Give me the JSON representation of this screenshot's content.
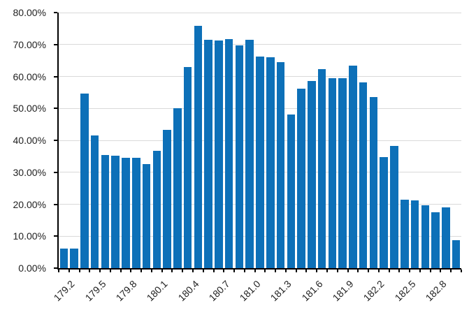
{
  "chart_data": {
    "type": "bar",
    "title": "",
    "xlabel": "",
    "ylabel": "",
    "ylim": [
      0,
      80
    ],
    "y_major_unit": 10,
    "grid": true,
    "legend": false,
    "categories": [
      "179.2",
      "179.3",
      "179.4",
      "179.5",
      "179.6",
      "179.7",
      "179.8",
      "179.9",
      "180.0",
      "180.1",
      "180.2",
      "180.3",
      "180.4",
      "180.5",
      "180.6",
      "180.7",
      "180.8",
      "180.9",
      "181.0",
      "181.1",
      "181.2",
      "181.3",
      "181.4",
      "181.5",
      "181.6",
      "181.7",
      "181.8",
      "181.9",
      "182.0",
      "182.1",
      "182.2",
      "182.3",
      "182.4",
      "182.5",
      "182.6",
      "182.7",
      "182.8",
      "182.9",
      "183.0"
    ],
    "values": [
      6.1,
      6.1,
      54.6,
      41.5,
      35.4,
      35.1,
      34.5,
      34.6,
      32.5,
      36.8,
      43.3,
      50.0,
      63.0,
      75.9,
      71.5,
      71.2,
      71.7,
      69.7,
      71.4,
      66.3,
      66.0,
      64.5,
      48.0,
      56.1,
      58.5,
      62.3,
      59.4,
      59.5,
      63.3,
      58.2,
      53.5,
      34.8,
      38.2,
      21.5,
      21.2,
      19.7,
      17.5,
      19.0,
      8.8
    ],
    "x_tick_labels_visible": [
      "179.2",
      "179.5",
      "179.8",
      "180.1",
      "180.4",
      "180.7",
      "181.0",
      "181.3",
      "181.6",
      "181.9",
      "182.2",
      "182.5",
      "182.8"
    ],
    "x_label_interval": 3,
    "y_tick_labels": [
      "0.00%",
      "10.00%",
      "20.00%",
      "30.00%",
      "40.00%",
      "50.00%",
      "60.00%",
      "70.00%",
      "80.00%"
    ],
    "bar_color": "#0d70b8",
    "gridline_color": "#d9d9d9",
    "axis_color": "#000000",
    "label_color": "#1f1f1f"
  }
}
